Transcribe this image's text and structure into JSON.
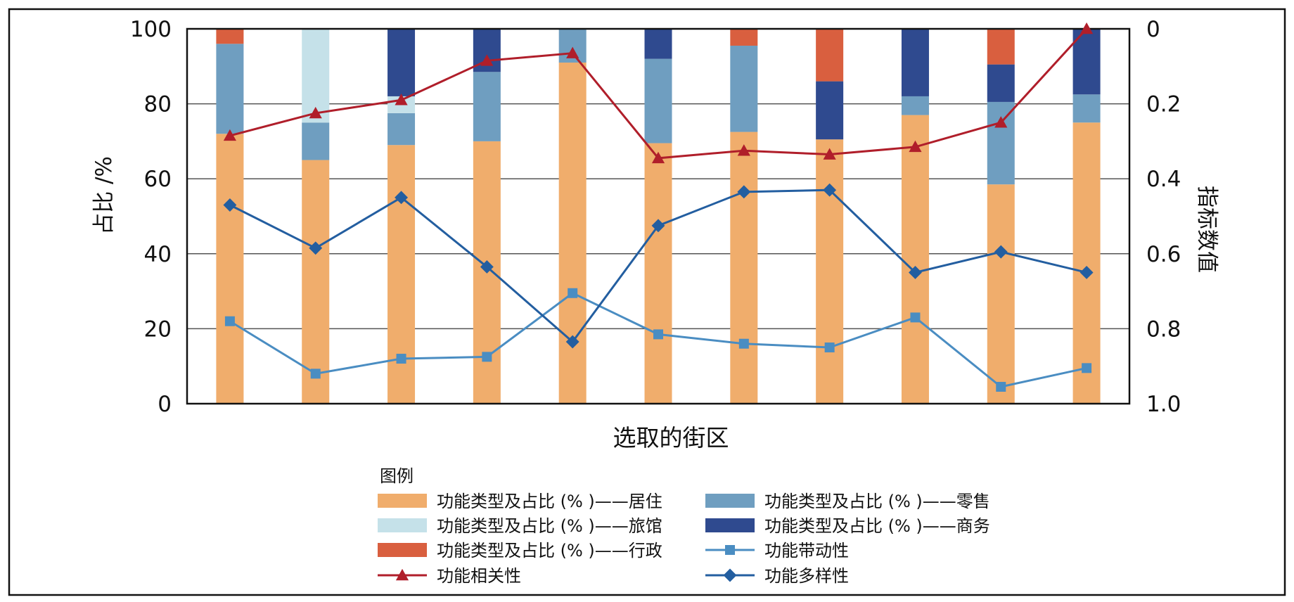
{
  "chart_data": {
    "type": "bar",
    "title": "",
    "xlabel": "选取的街区",
    "ylabel_left": "占比 /%",
    "ylabel_right": "指标数值",
    "ylim_left": [
      0,
      100
    ],
    "ylim_right": [
      0,
      1.0
    ],
    "right_axis_inverted": true,
    "left_ticks": [
      "0",
      "20",
      "40",
      "60",
      "80",
      "100"
    ],
    "right_ticks": [
      "1.0",
      "0.8",
      "0.6",
      "0.4",
      "0.2",
      "0"
    ],
    "grid": true,
    "categories": [
      "",
      "",
      "",
      "",
      "",
      "",
      "",
      "",
      "",
      "",
      ""
    ],
    "stacked_series": [
      {
        "name": "功能类型及占比 (% )——居住",
        "color": "#f0ad6c",
        "values": [
          72,
          65,
          69,
          70,
          91,
          69.5,
          72.5,
          70.5,
          77,
          58.5,
          75
        ]
      },
      {
        "name": "功能类型及占比 (% )——零售",
        "color": "#6f9ec0",
        "values": [
          24,
          10,
          8.5,
          18.5,
          9,
          22.5,
          23,
          0,
          5,
          22,
          7.5
        ]
      },
      {
        "name": "功能类型及占比 (% )——旅馆",
        "color": "#c5e1e9",
        "values": [
          0,
          25,
          4.5,
          0,
          0,
          0,
          0,
          0,
          0,
          0,
          0
        ]
      },
      {
        "name": "功能类型及占比 (% )——商务",
        "color": "#2f4a8f",
        "values": [
          0,
          0,
          18,
          11.5,
          0,
          8,
          0,
          15.5,
          18,
          10,
          17.5
        ]
      },
      {
        "name": "功能类型及占比 (% )——行政",
        "color": "#d95f3f",
        "values": [
          4,
          0,
          0,
          0,
          0,
          0,
          4.5,
          14,
          0,
          9.5,
          0
        ]
      }
    ],
    "line_series": [
      {
        "name": "功能带动性",
        "color": "#4a8dc2",
        "marker": "square",
        "values": [
          0.78,
          0.92,
          0.88,
          0.875,
          0.705,
          0.815,
          0.84,
          0.85,
          0.77,
          0.955,
          0.905
        ]
      },
      {
        "name": "功能多样性",
        "color": "#235ea0",
        "marker": "diamond",
        "values": [
          0.47,
          0.585,
          0.45,
          0.635,
          0.835,
          0.525,
          0.435,
          0.43,
          0.65,
          0.595,
          0.65
        ]
      },
      {
        "name": "功能相关性",
        "color": "#b01e2a",
        "marker": "triangle",
        "values": [
          0.285,
          0.225,
          0.19,
          0.085,
          0.065,
          0.345,
          0.325,
          0.335,
          0.315,
          0.25,
          0.0
        ]
      }
    ],
    "legend": {
      "title": "图例",
      "placement": "bottom",
      "items": [
        {
          "label": "功能类型及占比 (% )——居住",
          "kind": "bar",
          "color": "#f0ad6c"
        },
        {
          "label": "功能类型及占比 (% )——零售",
          "kind": "bar",
          "color": "#6f9ec0"
        },
        {
          "label": "功能类型及占比 (% )——旅馆",
          "kind": "bar",
          "color": "#c5e1e9"
        },
        {
          "label": "功能类型及占比 (% )——商务",
          "kind": "bar",
          "color": "#2f4a8f"
        },
        {
          "label": "功能类型及占比 (% )——行政",
          "kind": "bar",
          "color": "#d95f3f"
        },
        {
          "label": "功能带动性",
          "kind": "line",
          "marker": "square",
          "color": "#4a8dc2"
        },
        {
          "label": "功能相关性",
          "kind": "line",
          "marker": "triangle",
          "color": "#b01e2a"
        },
        {
          "label": "功能多样性",
          "kind": "line",
          "marker": "diamond",
          "color": "#235ea0"
        }
      ]
    }
  }
}
